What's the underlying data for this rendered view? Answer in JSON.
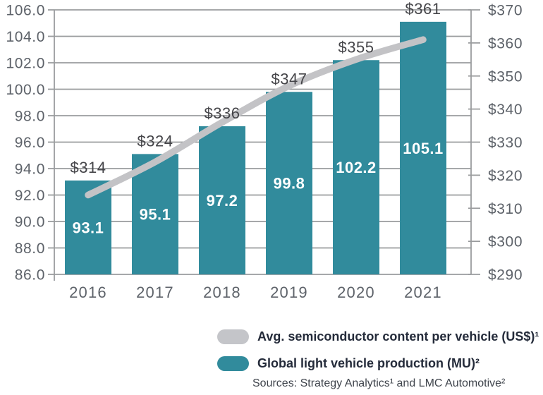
{
  "colors": {
    "bar": "#318b9c",
    "line": "#c3c3c6",
    "grid": "#9a9c9e",
    "axis_text": "#5d6269",
    "value_label_text": "#454549",
    "bar_label_text": "#ffffff",
    "legend_text": "#242b3a",
    "sources_text": "#3e434b",
    "legend_line_swatch": "#c4c5c9",
    "background": "#ffffff"
  },
  "chart_data": {
    "type": "combo (bar + line)",
    "categories": [
      "2016",
      "2017",
      "2018",
      "2019",
      "2020",
      "2021"
    ],
    "series": [
      {
        "name": "Global light vehicle production (MU)²",
        "type": "bar",
        "axis": "left",
        "values": [
          93.1,
          95.1,
          97.2,
          99.8,
          102.2,
          105.1
        ],
        "labels": [
          "93.1",
          "95.1",
          "97.2",
          "99.8",
          "102.2",
          "105.1"
        ]
      },
      {
        "name": "Avg. semiconductor content per vehicle (US$)¹",
        "type": "line",
        "axis": "right",
        "values": [
          314,
          324,
          336,
          347,
          355,
          361
        ],
        "labels": [
          "$314",
          "$324",
          "$336",
          "$347",
          "$355",
          "$361"
        ]
      }
    ],
    "left_axis": {
      "min": 86.0,
      "max": 106.0,
      "step": 2.0,
      "tick_labels": [
        "86.0",
        "88.0",
        "90.0",
        "92.0",
        "94.0",
        "96.0",
        "98.0",
        "100.0",
        "102.0",
        "104.0",
        "106.0"
      ]
    },
    "right_axis": {
      "min": 290,
      "max": 370,
      "step": 10,
      "tick_labels": [
        "$290",
        "$300",
        "$310",
        "$320",
        "$330",
        "$340",
        "$350",
        "$360",
        "$370"
      ]
    },
    "grid": "horizontal",
    "legend_position": "bottom-right"
  },
  "legend": {
    "items": [
      {
        "label": "Avg. semiconductor content per vehicle (US$)¹",
        "swatch": "gray-line"
      },
      {
        "label": "Global light vehicle production (MU)²",
        "swatch": "teal-bar"
      }
    ]
  },
  "sources": "Sources: Strategy Analytics¹ and LMC Automotive²"
}
